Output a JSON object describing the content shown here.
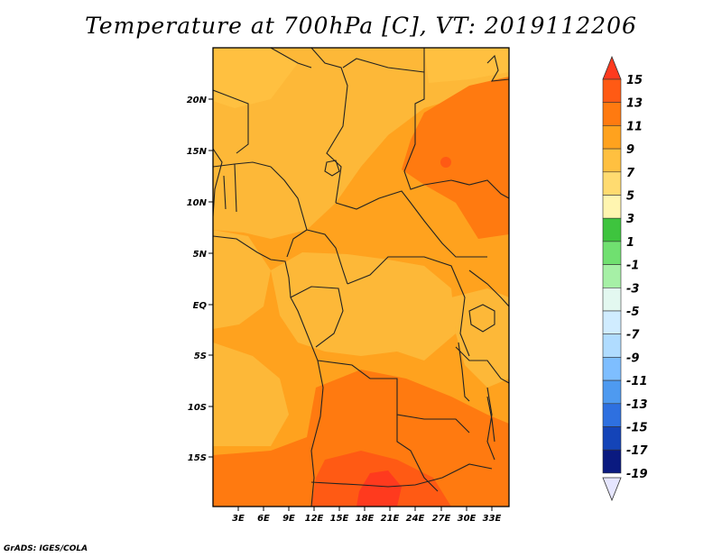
{
  "title": "Temperature at 700hPa [C], VT: 2019112206",
  "credit": "GrADS: IGES/COLA",
  "axes": {
    "lat_labels": [
      "20N",
      "15N",
      "10N",
      "5N",
      "EQ",
      "5S",
      "10S",
      "15S"
    ],
    "lon_labels": [
      "3E",
      "6E",
      "9E",
      "12E",
      "15E",
      "18E",
      "21E",
      "24E",
      "27E",
      "30E",
      "33E"
    ]
  },
  "colorbar": {
    "labels": [
      "15",
      "13",
      "11",
      "9",
      "7",
      "5",
      "3",
      "1",
      "-1",
      "-3",
      "-5",
      "-7",
      "-9",
      "-11",
      "-13",
      "-15",
      "-17",
      "-19"
    ],
    "colors": [
      "#ff3a1e",
      "#ff5a14",
      "#ff7a10",
      "#ffa21e",
      "#ffc040",
      "#ffdb70",
      "#fff5b0",
      "#3ec43e",
      "#70e070",
      "#a6f0a6",
      "#e3f8f0",
      "#d0ecff",
      "#b0dcff",
      "#7ebeff",
      "#4e9af0",
      "#2e70e0",
      "#1444b8",
      "#0a1a80",
      "#e6e6ff"
    ]
  },
  "field_colors": {
    "t5_7": "#ffc040",
    "t7_9": "#fdb838",
    "t9_11": "#ffa21e",
    "t11_13": "#ff7a10",
    "t13_15": "#ff5a14",
    "t15p": "#ff3a1e",
    "t3_5": "#fde69a"
  }
}
